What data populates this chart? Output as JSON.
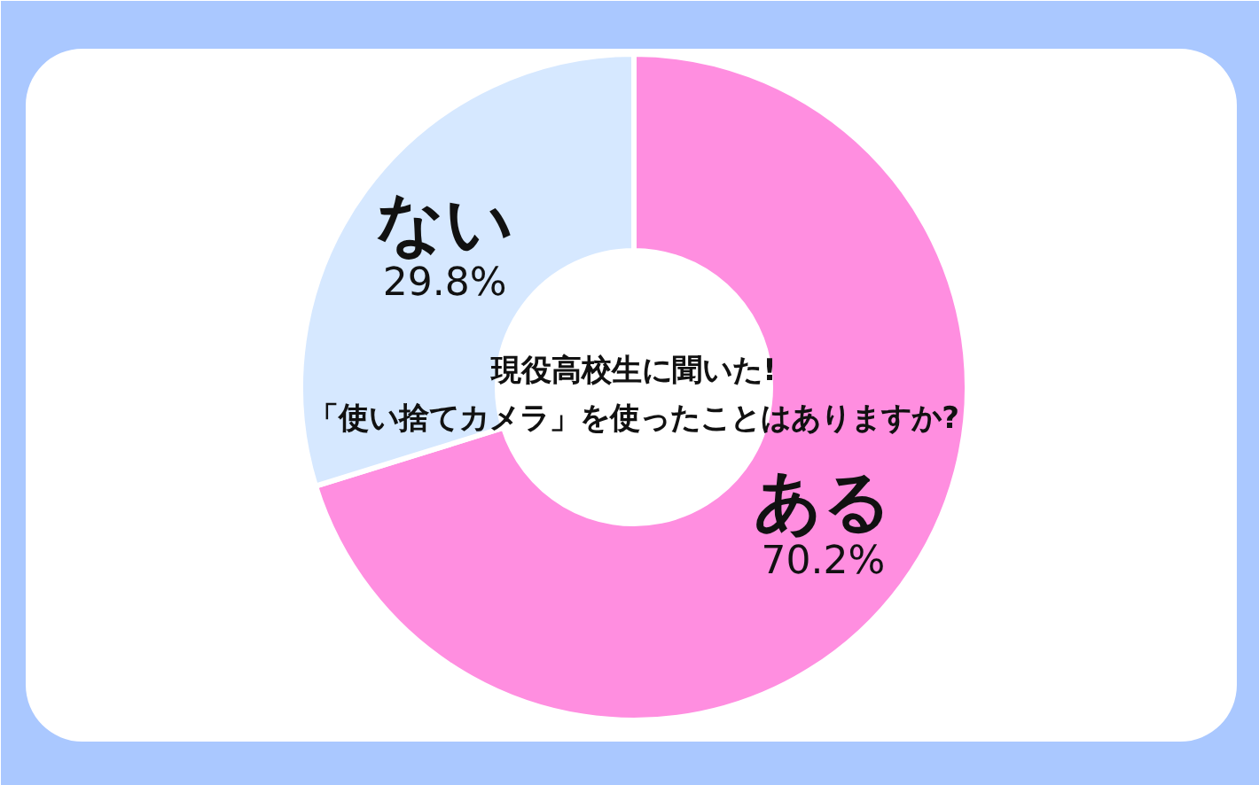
{
  "chart_data": {
    "type": "donut",
    "title": "現役高校生に聞いた!",
    "subtitle": "「使い捨てカメラ」を使ったことはありますか?",
    "categories": [
      "ある",
      "ない"
    ],
    "values": [
      70.2,
      29.8
    ],
    "colors": [
      "#ff8ee0",
      "#d6e8ff"
    ],
    "value_labels": [
      "70.2%",
      "29.8%"
    ]
  }
}
